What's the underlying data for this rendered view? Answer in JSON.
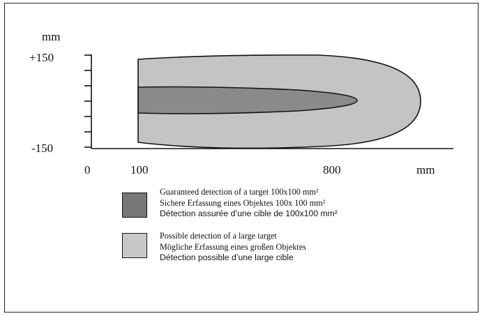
{
  "axes": {
    "y_unit": "mm",
    "y_top_label": "+150",
    "y_bottom_label": "-150",
    "x_labels": [
      "0",
      "100",
      "800"
    ],
    "x_unit": "mm"
  },
  "zones": {
    "possible": {
      "color": "#c4c4c4"
    },
    "guaranteed": {
      "color": "#8a8a8a"
    }
  },
  "legend": [
    {
      "swatch_color": "#777777",
      "lines": [
        "Guaranteed detection of a target 100x100 mm²",
        "Sichere Erfassung eines Objektes 100x 100 mm²",
        "Détection assurée d’une cible de 100x100 mm²"
      ]
    },
    {
      "swatch_color": "#c8c8c8",
      "lines": [
        "Possible detection of a large target",
        "Mögliche Erfassung eines  großen Objektes",
        "Détection possible d’une large cible"
      ]
    }
  ]
}
